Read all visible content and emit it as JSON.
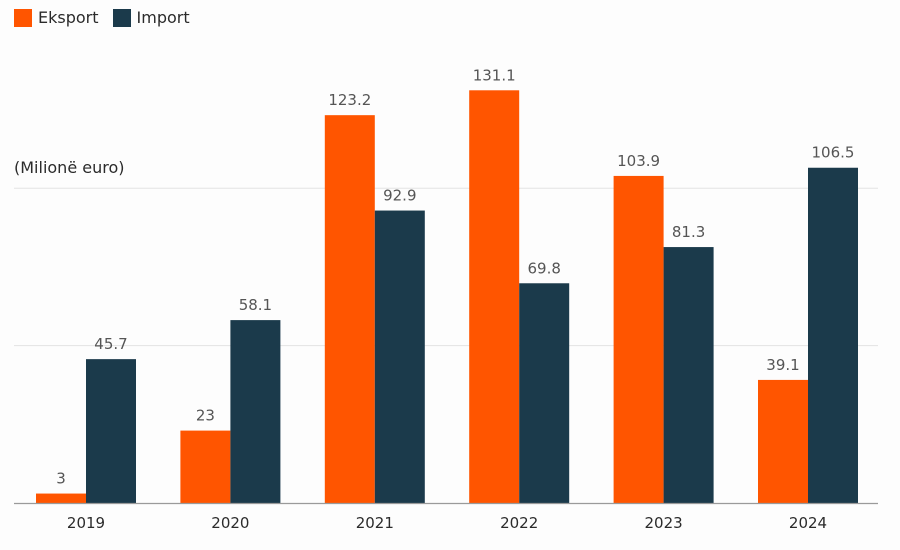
{
  "chart_data": {
    "type": "bar",
    "title": "",
    "unit_label": "(Milionë euro)",
    "categories": [
      "2019",
      "2020",
      "2021",
      "2022",
      "2023",
      "2024"
    ],
    "series": [
      {
        "name": "Eksport",
        "color": "#ff5500",
        "values": [
          3,
          23,
          123.2,
          131.1,
          103.9,
          39.1
        ]
      },
      {
        "name": "Import",
        "color": "#1b3a4b",
        "values": [
          45.7,
          58.1,
          92.9,
          69.8,
          81.3,
          106.5
        ]
      }
    ],
    "ylim": [
      0,
      140
    ],
    "grid": true,
    "legend": "top-left"
  }
}
